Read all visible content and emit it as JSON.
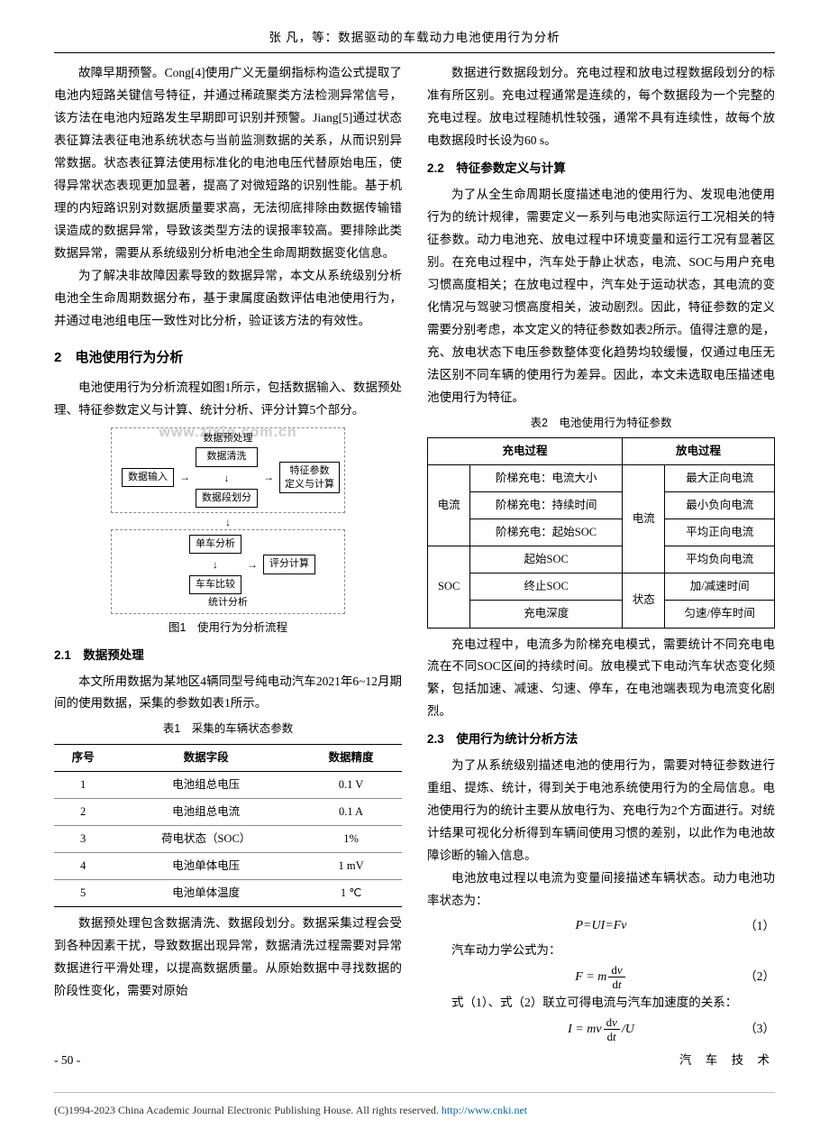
{
  "header": {
    "title": "张 凡，等：数据驱动的车载动力电池使用行为分析"
  },
  "col1": {
    "p1": "故障早期预警。Cong[4]使用广义无量纲指标构造公式提取了电池内短路关键信号特征，并通过稀疏聚类方法检测异常信号，该方法在电池内短路发生早期即可识别并预警。Jiang[5]通过状态表征算法表征电池系统状态与当前监测数据的关系，从而识别异常数据。状态表征算法使用标准化的电池电压代替原始电压，使得异常状态表现更加显著，提高了对微短路的识别性能。基于机理的内短路识别对数据质量要求高，无法彻底排除由数据传输错误造成的数据异常，导致该类型方法的误报率较高。要排除此类数据异常，需要从系统级别分析电池全生命周期数据变化信息。",
    "p2": "为了解决非故障因素导致的数据异常，本文从系统级别分析电池全生命周期数据分布，基于隶属度函数评估电池使用行为，并通过电池组电压一致性对比分析，验证该方法的有效性。",
    "sec2_title": "2　电池使用行为分析",
    "sec2_p1": "电池使用行为分析流程如图1所示，包括数据输入、数据预处理、特征参数定义与计算、统计分析、评分计算5个部分。",
    "fig1_caption": "图1　使用行为分析流程",
    "sec21_title": "2.1　数据预处理",
    "sec21_p1": "本文所用数据为某地区4辆同型号纯电动汽车2021年6~12月期间的使用数据，采集的参数如表1所示。",
    "t1_caption": "表1　采集的车辆状态参数",
    "t1_headers": [
      "序号",
      "数据字段",
      "数据精度"
    ],
    "t1_rows": [
      [
        "1",
        "电池组总电压",
        "0.1 V"
      ],
      [
        "2",
        "电池组总电流",
        "0.1 A"
      ],
      [
        "3",
        "荷电状态（SOC）",
        "1%"
      ],
      [
        "4",
        "电池单体电压",
        "1 mV"
      ],
      [
        "5",
        "电池单体温度",
        "1 ℃"
      ]
    ],
    "sec21_p2": "数据预处理包含数据清洗、数据段划分。数据采集过程会受到各种因素干扰，导致数据出现异常，数据清洗过程需要对异常数据进行平滑处理，以提高数据质量。从原始数据中寻找数据的阶段性变化，需要对原始"
  },
  "flow": {
    "group1_label": "数据预处理",
    "input": "数据输入",
    "clean": "数据清洗",
    "segment": "数据段划分",
    "feature1": "特征参数",
    "feature2": "定义与计算",
    "group2_label": "统计分析",
    "single": "单车分析",
    "compare": "车车比较",
    "score": "评分计算",
    "watermark": "www.zixin.com.cn"
  },
  "col2": {
    "p1": "数据进行数据段划分。充电过程和放电过程数据段划分的标准有所区别。充电过程通常是连续的，每个数据段为一个完整的充电过程。放电过程随机性较强，通常不具有连续性，故每个放电数据段时长设为60 s。",
    "sec22_title": "2.2　特征参数定义与计算",
    "sec22_p1": "为了从全生命周期长度描述电池的使用行为、发现电池使用行为的统计规律，需要定义一系列与电池实际运行工况相关的特征参数。动力电池充、放电过程中环境变量和运行工况有显著区别。在充电过程中，汽车处于静止状态，电流、SOC与用户充电习惯高度相关；在放电过程中，汽车处于运动状态，其电流的变化情况与驾驶习惯高度相关，波动剧烈。因此，特征参数的定义需要分别考虑，本文定义的特征参数如表2所示。值得注意的是，充、放电状态下电压参数整体变化趋势均较缓慢，仅通过电压无法区别不同车辆的使用行为差异。因此，本文未选取电压描述电池使用行为特征。",
    "t2_caption": "表2　电池使用行为特征参数",
    "t2": {
      "charge_head": "充电过程",
      "discharge_head": "放电过程",
      "charge_current_label": "电流",
      "charge_current": [
        "阶梯充电：电流大小",
        "阶梯充电：持续时间",
        "阶梯充电：起始SOC"
      ],
      "charge_soc_label": "SOC",
      "charge_soc": [
        "起始SOC",
        "终止SOC",
        "充电深度"
      ],
      "dis_current_label": "电流",
      "dis_current": [
        "最大正向电流",
        "最小负向电流",
        "平均正向电流",
        "平均负向电流"
      ],
      "dis_state_label": "状态",
      "dis_state": [
        "加/减速时间",
        "匀速/停车时间"
      ]
    },
    "sec22_p2": "充电过程中，电流多为阶梯充电模式，需要统计不同充电电流在不同SOC区间的持续时间。放电模式下电动汽车状态变化频繁，包括加速、减速、匀速、停车，在电池端表现为电流变化剧烈。",
    "sec23_title": "2.3　使用行为统计分析方法",
    "sec23_p1": "为了从系统级别描述电池的使用行为，需要对特征参数进行重组、提炼、统计，得到关于电池系统使用行为的全局信息。电池使用行为的统计主要从放电行为、充电行为2个方面进行。对统计结果可视化分析得到车辆间使用习惯的差别，以此作为电池故障诊断的输入信息。",
    "sec23_p2": "电池放电过程以电流为变量间接描述车辆状态。动力电池功率状态为：",
    "eq1": {
      "body": "P=UI=Fv",
      "num": "（1）"
    },
    "sec23_p3": "汽车动力学公式为：",
    "eq2": {
      "lhs": "F = m",
      "dv": "dv",
      "dt": "dt",
      "num": "（2）"
    },
    "sec23_p4": "式（1）、式（2）联立可得电流与汽车加速度的关系：",
    "eq3": {
      "lhs": "I = mv",
      "dv": "dv",
      "dt": "dt",
      "tail": "/U",
      "num": "（3）"
    }
  },
  "footer": {
    "page": "- 50 -",
    "journal": "汽 车 技 术"
  },
  "copyright": {
    "text": "(C)1994-2023 China Academic Journal Electronic Publishing House. All rights reserved.   ",
    "link": "http://www.cnki.net"
  }
}
